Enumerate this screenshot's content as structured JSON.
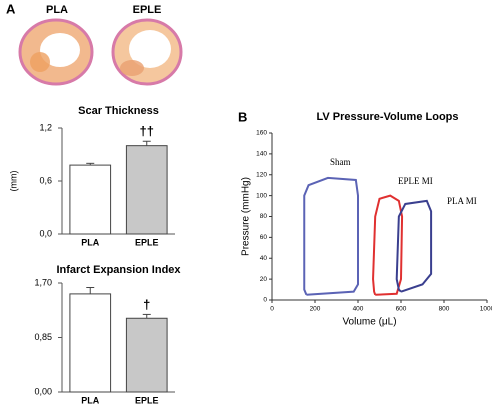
{
  "panels": {
    "a": "A",
    "b": "B"
  },
  "images": [
    "PLA",
    "EPLE"
  ],
  "chart_data": [
    {
      "type": "bar",
      "title": "Scar Thickness",
      "ylabel": "(mm)",
      "categories": [
        "PLA",
        "EPLE"
      ],
      "values": [
        0.78,
        1.0
      ],
      "errors": [
        0.02,
        0.05
      ],
      "annotations": [
        null,
        "††"
      ],
      "colors": [
        "#ffffff",
        "#c8c8c8"
      ],
      "ylim": [
        0,
        1.2
      ],
      "yticks": [
        {
          "value": 0,
          "label": "0,0"
        },
        {
          "value": 0.6,
          "label": "0,6"
        },
        {
          "value": 1.2,
          "label": "1,2"
        }
      ]
    },
    {
      "type": "bar",
      "title": "Infarct Expansion Index",
      "categories": [
        "PLA",
        "EPLE"
      ],
      "values": [
        1.53,
        1.15
      ],
      "errors": [
        0.1,
        0.06
      ],
      "annotations": [
        null,
        "†"
      ],
      "colors": [
        "#ffffff",
        "#c8c8c8"
      ],
      "ylim": [
        0,
        1.7
      ],
      "yticks": [
        {
          "value": 0,
          "label": "0,00"
        },
        {
          "value": 0.85,
          "label": "0,85"
        },
        {
          "value": 1.7,
          "label": "1,70"
        }
      ]
    },
    {
      "type": "line",
      "title": "LV Pressure-Volume Loops",
      "xlabel": "Volume (μL)",
      "ylabel": "Pressure (mmHg)",
      "xlim": [
        0,
        1000
      ],
      "xticks": [
        0,
        200,
        400,
        600,
        800,
        1000
      ],
      "ylim": [
        0,
        160
      ],
      "yticks": [
        0,
        20,
        40,
        60,
        80,
        100,
        120,
        140,
        160
      ],
      "series": [
        {
          "name": "Sham",
          "color": "#5b63b5",
          "x": [
            160,
            380,
            400,
            400,
            390,
            260,
            170,
            150,
            150,
            160
          ],
          "values": [
            5,
            8,
            15,
            100,
            115,
            117,
            110,
            100,
            10,
            5
          ]
        },
        {
          "name": "EPLE MI",
          "color": "#e03030",
          "x": [
            480,
            580,
            600,
            605,
            590,
            550,
            500,
            480,
            470,
            475,
            480
          ],
          "values": [
            5,
            6,
            20,
            80,
            95,
            100,
            97,
            80,
            20,
            8,
            5
          ]
        },
        {
          "name": "PLA MI",
          "color": "#3a3f8f",
          "x": [
            600,
            700,
            740,
            740,
            720,
            620,
            590,
            580,
            590,
            600
          ],
          "values": [
            8,
            15,
            25,
            85,
            95,
            92,
            80,
            20,
            10,
            8
          ]
        }
      ]
    }
  ]
}
